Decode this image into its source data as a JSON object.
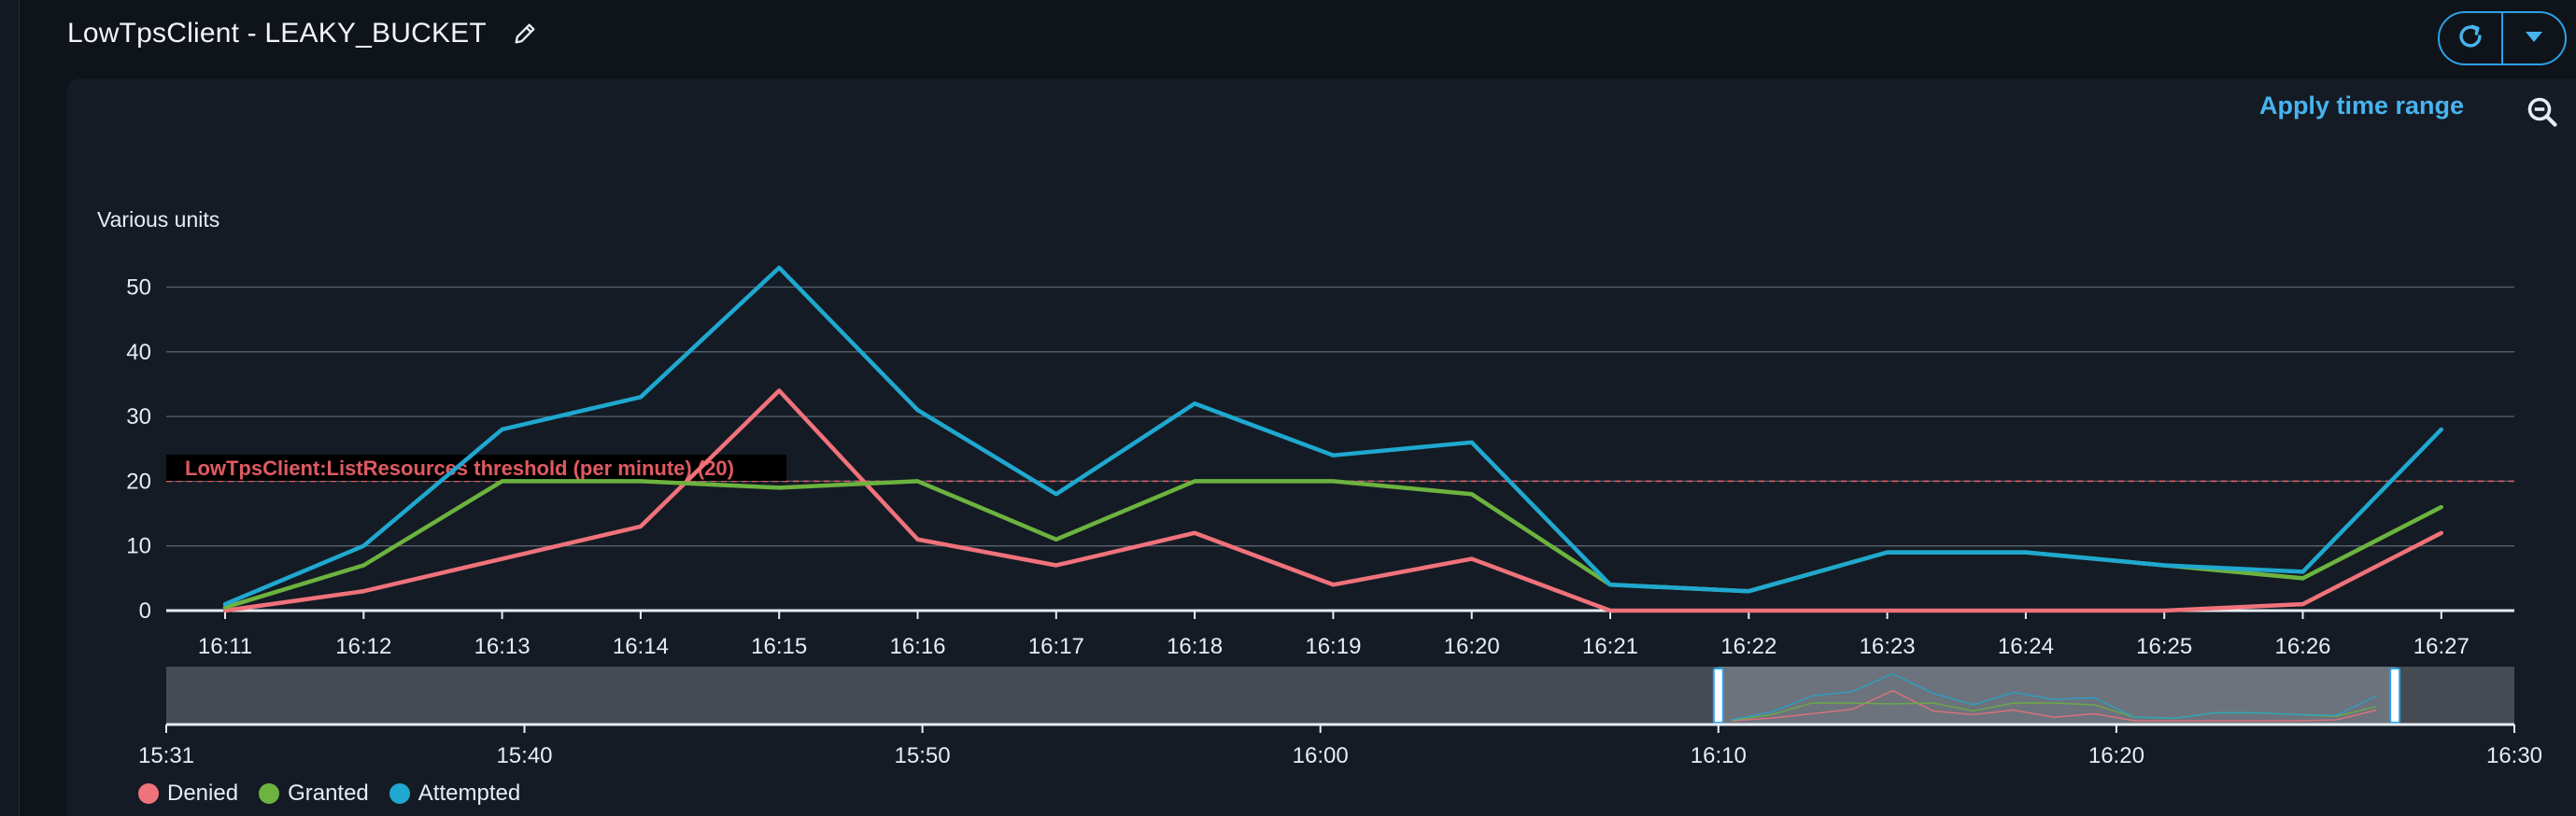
{
  "header": {
    "title": "LowTpsClient - LEAKY_BUCKET"
  },
  "toolbar": {
    "apply_time_range": "Apply time range"
  },
  "icons": {
    "edit": "pencil-icon",
    "refresh": "refresh-icon",
    "dropdown": "caret-down-icon",
    "zoom_out": "zoom-out-icon"
  },
  "colors": {
    "accent": "#2ea1e6",
    "denied": "#f0727a",
    "granted": "#6cb33f",
    "attempted": "#1fa8d0",
    "threshold": "#e05a62"
  },
  "chart_data": {
    "type": "line",
    "ylabel": "Various units",
    "ylim": [
      0,
      55
    ],
    "yticks": [
      0,
      10,
      20,
      30,
      40,
      50
    ],
    "grid": true,
    "legend_position": "bottom-left",
    "categories": [
      "16:11",
      "16:12",
      "16:13",
      "16:14",
      "16:15",
      "16:16",
      "16:17",
      "16:18",
      "16:19",
      "16:20",
      "16:21",
      "16:22",
      "16:23",
      "16:24",
      "16:25",
      "16:26",
      "16:27"
    ],
    "series": [
      {
        "name": "Denied",
        "color": "#f0727a",
        "values": [
          0,
          3,
          8,
          13,
          34,
          11,
          7,
          12,
          4,
          8,
          0,
          0,
          0,
          0,
          0,
          1,
          12
        ]
      },
      {
        "name": "Granted",
        "color": "#6cb33f",
        "values": [
          0.5,
          7,
          20,
          20,
          19,
          20,
          11,
          20,
          20,
          18,
          4,
          3,
          9,
          9,
          7,
          5,
          16
        ]
      },
      {
        "name": "Attempted",
        "color": "#1fa8d0",
        "values": [
          1,
          10,
          28,
          33,
          53,
          31,
          18,
          32,
          24,
          26,
          4,
          3,
          9,
          9,
          7,
          6,
          28
        ]
      }
    ],
    "annotations": [
      {
        "type": "horizontal_threshold",
        "value": 20,
        "label": "LowTpsClient:ListResources threshold (per minute) (20)"
      }
    ],
    "navigator": {
      "tick_labels": [
        "15:31",
        "15:40",
        "15:50",
        "16:00",
        "16:10",
        "16:20",
        "16:30"
      ],
      "selected_range": [
        "16:10",
        "16:27"
      ]
    }
  }
}
